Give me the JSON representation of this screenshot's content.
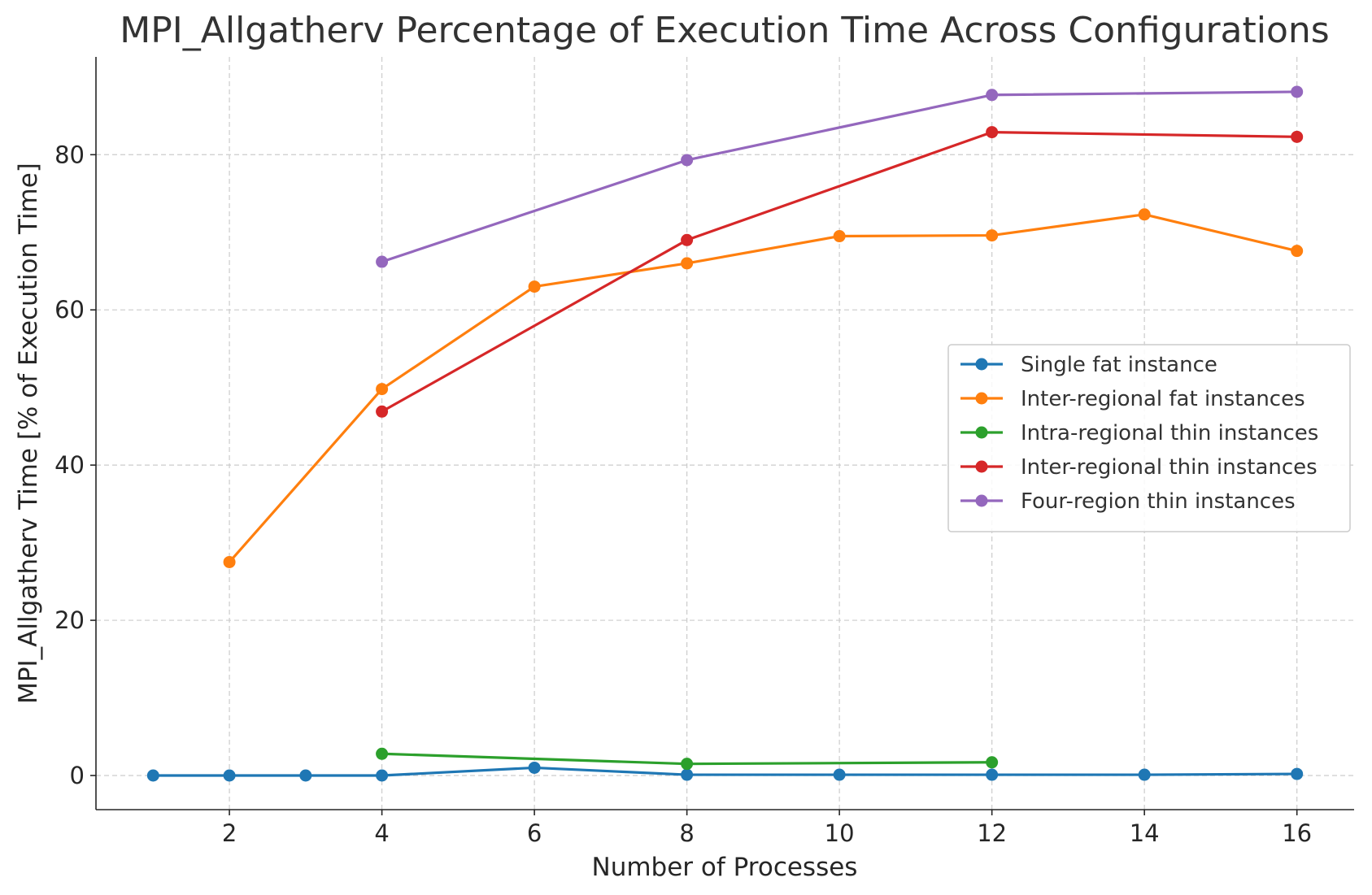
{
  "chart_data": {
    "type": "line",
    "title": "MPI_Allgatherv Percentage of Execution Time Across Configurations",
    "xlabel": "Number of Processes",
    "ylabel": "MPI_Allgatherv Time [% of Execution Time]",
    "xlim": [
      0.25,
      16.75
    ],
    "ylim": [
      -4.4,
      92.6
    ],
    "xticks": [
      2,
      4,
      6,
      8,
      10,
      12,
      14,
      16
    ],
    "yticks": [
      0,
      20,
      40,
      60,
      80
    ],
    "grid": true,
    "legend_position": "center-right",
    "series": [
      {
        "name": "Single fat instance",
        "color": "#1f77b4",
        "x": [
          1,
          2,
          3,
          4,
          6,
          8,
          10,
          12,
          14,
          16
        ],
        "y": [
          0.0,
          0.0,
          0.0,
          0.0,
          1.0,
          0.1,
          0.1,
          0.1,
          0.1,
          0.2
        ]
      },
      {
        "name": "Inter-regional fat instances",
        "color": "#ff7f0e",
        "x": [
          2,
          4,
          6,
          8,
          10,
          12,
          14,
          16
        ],
        "y": [
          27.5,
          49.8,
          63.0,
          66.0,
          69.5,
          69.6,
          72.3,
          67.6
        ]
      },
      {
        "name": "Intra-regional thin instances",
        "color": "#2ca02c",
        "x": [
          4,
          8,
          12
        ],
        "y": [
          2.8,
          1.5,
          1.7
        ]
      },
      {
        "name": "Inter-regional thin instances",
        "color": "#d62728",
        "x": [
          4,
          8,
          12,
          16
        ],
        "y": [
          46.9,
          69.0,
          82.9,
          82.3
        ]
      },
      {
        "name": "Four-region thin instances",
        "color": "#9467bd",
        "x": [
          4,
          8,
          12,
          16
        ],
        "y": [
          66.2,
          79.3,
          87.7,
          88.1
        ]
      }
    ]
  }
}
